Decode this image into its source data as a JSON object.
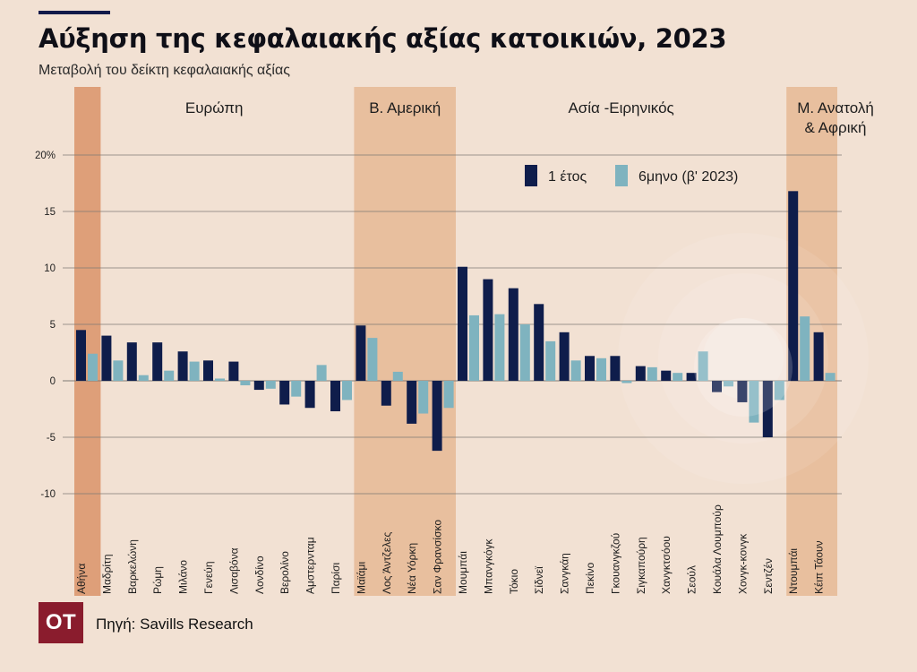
{
  "header": {
    "title": "Αύξηση της κεφαλαιακής αξίας κατοικιών, 2023",
    "subtitle": "Μεταβολή του δείκτη κεφαλαιακής αξίας"
  },
  "footer": {
    "logo": "OT",
    "source": "Πηγή: Savills Research"
  },
  "colors": {
    "series1": "#0f1d4b",
    "series2": "#7fb3bf",
    "highlight": "#de9f79",
    "region_band": "#e8bf9e",
    "background": "#f2e1d3"
  },
  "chart_data": {
    "type": "bar",
    "title": "Αύξηση της κεφαλαιακής αξίας κατοικιών, 2023",
    "ylim": [
      -10,
      20
    ],
    "y_ticks": [
      20,
      15,
      10,
      5,
      0,
      -5,
      -10
    ],
    "y_tick_labels": [
      "20%",
      "15",
      "10",
      "5",
      "0",
      "-5",
      "-10"
    ],
    "grid": true,
    "legend_position": "top-right",
    "categories": [
      "Αθήνα",
      "Μαδρίτη",
      "Βαρκελώνη",
      "Ρώμη",
      "Μιλάνο",
      "Γενεύη",
      "Λισαβόνα",
      "Λονδίνο",
      "Βερολίνο",
      "Αμστερνταμ",
      "Παρίσι",
      "Μαϊάμι",
      "Λος Άντζελες",
      "Νέα Υόρκη",
      "Σαν Φρανσίσκο",
      "Μουμπάι",
      "Μπανγκόγκ",
      "Τόκιο",
      "Σίδνεϊ",
      "Σανγκάη",
      "Πεκίνο",
      "Γκουανγκζού",
      "Σιγκαπούρη",
      "Χανγκτσόου",
      "Σεούλ",
      "Κουάλα Λουμπούρ",
      "Χονγκ-κονγκ",
      "Σεντζέν",
      "Ντουμπάι",
      "Κέιπ Τάουν"
    ],
    "series": [
      {
        "name": "1 έτος",
        "values": [
          4.5,
          4.0,
          3.4,
          3.4,
          2.6,
          1.8,
          1.7,
          -0.8,
          -2.1,
          -2.4,
          -2.7,
          4.9,
          -2.2,
          -3.8,
          -6.2,
          10.1,
          9.0,
          8.2,
          6.8,
          4.3,
          2.2,
          2.2,
          1.3,
          0.9,
          0.7,
          -1.0,
          -1.9,
          -5.0,
          16.8,
          4.3
        ]
      },
      {
        "name": "6μηνο (β' 2023)",
        "values": [
          2.4,
          1.8,
          0.5,
          0.9,
          1.7,
          0.2,
          -0.4,
          -0.7,
          -1.4,
          1.4,
          -1.7,
          3.8,
          0.8,
          -2.9,
          -2.4,
          5.8,
          5.9,
          5.0,
          3.5,
          1.8,
          2.0,
          -0.2,
          1.2,
          0.7,
          2.6,
          -0.5,
          -3.7,
          -1.7,
          5.7,
          0.7
        ]
      }
    ],
    "highlighted_categories": [
      "Αθήνα"
    ],
    "regions": [
      {
        "label": "Ευρώπη",
        "from": 0,
        "to": 10,
        "shaded": false
      },
      {
        "label": "Β. Αμερική",
        "from": 11,
        "to": 14,
        "shaded": true
      },
      {
        "label": "Ασία -Ειρηνικός",
        "from": 15,
        "to": 27,
        "shaded": false
      },
      {
        "label": "Μ. Ανατολή & Αφρική",
        "label_lines": [
          "Μ. Ανατολή",
          "& Αφρική"
        ],
        "from": 28,
        "to": 29,
        "shaded": true
      }
    ]
  }
}
